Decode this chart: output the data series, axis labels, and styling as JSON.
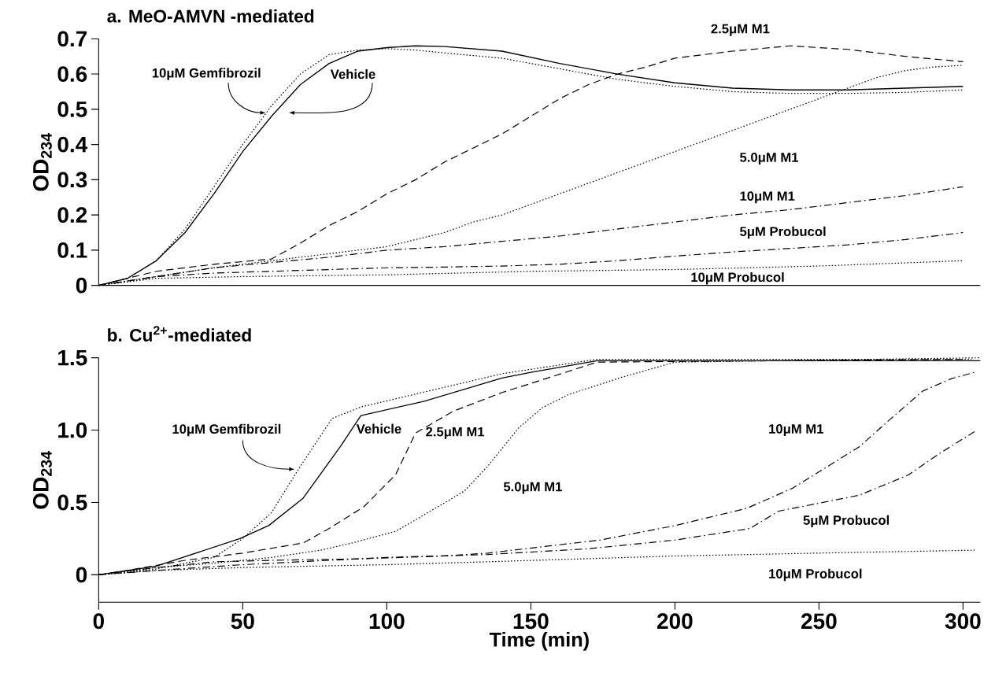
{
  "chart_data": [
    {
      "type": "line",
      "title": "a. MeO-AMVN -mediated",
      "ylabel": "OD$_{234}$",
      "xlim": [
        0,
        306
      ],
      "ylim": [
        0,
        0.7
      ],
      "yticks": [
        0,
        0.1,
        0.2,
        0.3,
        0.4,
        0.5,
        0.6,
        0.7
      ],
      "tick_labels": "y",
      "series": [
        {
          "name": "Vehicle",
          "color": "#000000",
          "line_style": "solid",
          "x": [
            0,
            10,
            20,
            30,
            40,
            50,
            60,
            70,
            80,
            90,
            100,
            110,
            120,
            140,
            160,
            180,
            200,
            220,
            240,
            260,
            280,
            300
          ],
          "values": [
            0,
            0.02,
            0.07,
            0.15,
            0.26,
            0.38,
            0.48,
            0.57,
            0.63,
            0.665,
            0.675,
            0.68,
            0.678,
            0.665,
            0.63,
            0.6,
            0.575,
            0.56,
            0.555,
            0.555,
            0.56,
            0.565
          ]
        },
        {
          "name": "10μM Gemfibrozil",
          "color": "#000000",
          "line_style": "dotted",
          "x": [
            0,
            10,
            20,
            30,
            40,
            50,
            60,
            70,
            80,
            90,
            100,
            110,
            120,
            140,
            160,
            180,
            200,
            220,
            240,
            260,
            280,
            300
          ],
          "values": [
            0,
            0.02,
            0.07,
            0.16,
            0.28,
            0.4,
            0.51,
            0.6,
            0.655,
            0.668,
            0.672,
            0.668,
            0.66,
            0.645,
            0.615,
            0.585,
            0.565,
            0.55,
            0.545,
            0.545,
            0.548,
            0.555
          ]
        },
        {
          "name": "2.5μM M1",
          "color": "#000000",
          "line_style": "dashed",
          "x": [
            0,
            20,
            40,
            60,
            70,
            80,
            90,
            100,
            110,
            120,
            130,
            140,
            150,
            160,
            170,
            180,
            190,
            200,
            220,
            240,
            260,
            280,
            300
          ],
          "values": [
            0,
            0.04,
            0.06,
            0.075,
            0.12,
            0.17,
            0.21,
            0.26,
            0.3,
            0.35,
            0.39,
            0.43,
            0.48,
            0.53,
            0.57,
            0.6,
            0.62,
            0.645,
            0.665,
            0.68,
            0.67,
            0.65,
            0.635
          ]
        },
        {
          "name": "5.0μM M1",
          "color": "#000000",
          "line_style": "dotted",
          "x": [
            0,
            40,
            60,
            80,
            100,
            120,
            130,
            140,
            150,
            160,
            170,
            180,
            190,
            200,
            210,
            220,
            230,
            240,
            250,
            260,
            270,
            280,
            290,
            300
          ],
          "values": [
            0,
            0.05,
            0.07,
            0.09,
            0.11,
            0.15,
            0.18,
            0.2,
            0.23,
            0.26,
            0.29,
            0.32,
            0.35,
            0.38,
            0.41,
            0.44,
            0.47,
            0.5,
            0.53,
            0.56,
            0.59,
            0.61,
            0.62,
            0.625
          ]
        },
        {
          "name": "10μM M1",
          "color": "#000000",
          "line_style": "dashdot",
          "x": [
            0,
            40,
            80,
            100,
            120,
            140,
            160,
            180,
            200,
            220,
            240,
            260,
            280,
            300
          ],
          "values": [
            0,
            0.05,
            0.08,
            0.1,
            0.11,
            0.125,
            0.14,
            0.16,
            0.18,
            0.2,
            0.215,
            0.235,
            0.255,
            0.28
          ]
        },
        {
          "name": "5μM Probucol",
          "color": "#000000",
          "line_style": "dashdot",
          "x": [
            0,
            20,
            40,
            60,
            80,
            100,
            120,
            140,
            160,
            180,
            200,
            220,
            240,
            260,
            280,
            300
          ],
          "values": [
            0,
            0.025,
            0.035,
            0.04,
            0.045,
            0.05,
            0.052,
            0.055,
            0.06,
            0.07,
            0.083,
            0.095,
            0.105,
            0.115,
            0.13,
            0.15
          ]
        },
        {
          "name": "10μM Probucol",
          "color": "#000000",
          "line_style": "dotted",
          "x": [
            0,
            20,
            50,
            100,
            150,
            200,
            250,
            300
          ],
          "values": [
            0,
            0.02,
            0.025,
            0.03,
            0.04,
            0.045,
            0.055,
            0.07
          ]
        }
      ]
    },
    {
      "type": "line",
      "title": "b. Cu$^{2+}$-mediated",
      "xlabel": "Time (min)",
      "ylabel": "OD$_{234}$",
      "xlim": [
        0,
        306
      ],
      "ylim": [
        -0.19,
        1.5
      ],
      "xticks": [
        0,
        50,
        100,
        150,
        200,
        250,
        300
      ],
      "yticks": [
        0,
        {
          "value": 0.5,
          "label": "0.5"
        },
        {
          "value": 1,
          "label": "1.0"
        },
        {
          "value": 1.5,
          "label": "1.5"
        }
      ],
      "series": [
        {
          "name": "Vehicle",
          "color": "#000000",
          "line_style": "solid",
          "x": [
            0,
            10,
            20,
            49,
            59,
            71,
            84,
            91,
            113,
            140,
            150,
            173,
            306
          ],
          "values": [
            0,
            0.03,
            0.06,
            0.25,
            0.34,
            0.53,
            0.89,
            1.1,
            1.2,
            1.36,
            1.4,
            1.48,
            1.48
          ]
        },
        {
          "name": "10μM Gemfibrozil",
          "color": "#000000",
          "line_style": "dotted",
          "x": [
            0,
            20,
            40,
            50,
            60,
            70,
            81,
            91,
            140,
            173,
            303
          ],
          "values": [
            0,
            0.04,
            0.12,
            0.25,
            0.43,
            0.75,
            1.08,
            1.16,
            1.39,
            1.49,
            1.49
          ]
        },
        {
          "name": "2.5μM M1",
          "color": "#000000",
          "line_style": "dashed",
          "x": [
            0,
            10,
            30,
            50,
            71,
            80,
            92,
            103,
            110,
            123,
            140,
            148,
            173,
            300
          ],
          "values": [
            0,
            0.03,
            0.1,
            0.15,
            0.22,
            0.32,
            0.47,
            0.69,
            0.98,
            1.13,
            1.26,
            1.31,
            1.47,
            1.49
          ]
        },
        {
          "name": "5.0μM M1",
          "color": "#000000",
          "line_style": "dotted",
          "x": [
            0,
            20,
            40,
            60,
            77,
            88,
            103,
            110,
            122,
            127,
            135,
            146,
            154,
            163,
            180,
            200,
            306
          ],
          "values": [
            0,
            0.05,
            0.08,
            0.12,
            0.17,
            0.22,
            0.3,
            0.38,
            0.52,
            0.58,
            0.75,
            1.02,
            1.155,
            1.245,
            1.356,
            1.47,
            1.5
          ]
        },
        {
          "name": "10μM M1",
          "color": "#000000",
          "line_style": "dashdot",
          "x": [
            0,
            20,
            40,
            60,
            90,
            120,
            135,
            174,
            200,
            225,
            241,
            264,
            275,
            286,
            296,
            304
          ],
          "values": [
            0,
            0.05,
            0.09,
            0.1,
            0.11,
            0.13,
            0.15,
            0.24,
            0.34,
            0.46,
            0.6,
            0.885,
            1.08,
            1.27,
            1.356,
            1.4
          ]
        },
        {
          "name": "5μM Probucol",
          "color": "#000000",
          "line_style": "dashdot",
          "x": [
            0,
            20,
            50,
            80,
            100,
            135,
            170,
            200,
            226,
            236,
            264,
            281,
            292,
            304
          ],
          "values": [
            0,
            0.03,
            0.07,
            0.1,
            0.12,
            0.14,
            0.18,
            0.24,
            0.32,
            0.44,
            0.55,
            0.69,
            0.84,
            0.99
          ]
        },
        {
          "name": "10μM Probucol",
          "color": "#000000",
          "line_style": "dotted",
          "x": [
            0,
            20,
            50,
            100,
            135,
            200,
            250,
            304
          ],
          "values": [
            0,
            0.03,
            0.05,
            0.07,
            0.09,
            0.13,
            0.15,
            0.17
          ]
        }
      ]
    }
  ]
}
